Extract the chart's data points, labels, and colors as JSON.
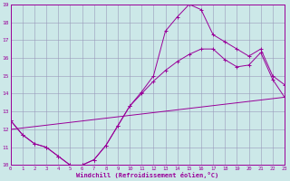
{
  "xlabel": "Windchill (Refroidissement éolien,°C)",
  "bg_color": "#cce8e8",
  "grid_color": "#9999bb",
  "line_color": "#990099",
  "xmin": 0,
  "xmax": 23,
  "ymin": 10,
  "ymax": 19,
  "line1_x": [
    0,
    1,
    2,
    3,
    4,
    5,
    6,
    7,
    8,
    9,
    10,
    11,
    12,
    13,
    14,
    15,
    16,
    17,
    18,
    19,
    20,
    21,
    22,
    23
  ],
  "line1_y": [
    12.5,
    11.7,
    11.2,
    11.0,
    10.5,
    10.0,
    10.0,
    10.3,
    11.1,
    12.2,
    13.3,
    14.1,
    15.0,
    17.5,
    18.3,
    19.0,
    18.7,
    17.3,
    16.9,
    16.5,
    16.1,
    16.5,
    15.0,
    14.5
  ],
  "line2_x": [
    0,
    1,
    2,
    3,
    4,
    5,
    6,
    7,
    8,
    9,
    10,
    11,
    12,
    13,
    14,
    15,
    16,
    17,
    18,
    19,
    20,
    21,
    22,
    23
  ],
  "line2_y": [
    12.5,
    11.7,
    11.2,
    11.0,
    10.5,
    10.0,
    10.0,
    10.3,
    11.1,
    12.2,
    13.3,
    14.0,
    14.7,
    15.3,
    15.8,
    16.2,
    16.5,
    16.5,
    15.9,
    15.5,
    15.6,
    16.3,
    14.8,
    13.8
  ],
  "line3_x": [
    0,
    23
  ],
  "line3_y": [
    12.0,
    13.8
  ]
}
